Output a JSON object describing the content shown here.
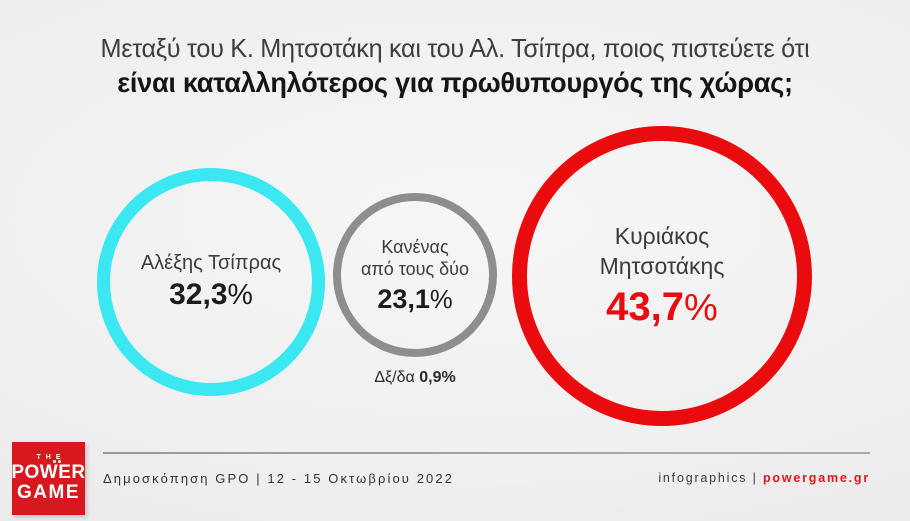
{
  "title": {
    "line1": "Μεταξύ του Κ. Μητσοτάκη και του Αλ. Τσίπρα, ποιος πιστεύετε ότι",
    "line2": "είναι καταλληλότερος για πρωθυπουργός της χώρας;"
  },
  "chart_data": {
    "type": "pie",
    "variant": "proportional-circles",
    "title": "Μεταξύ του Κ. Μητσοτάκη και του Αλ. Τσίπρα, ποιος πιστεύετε ότι είναι καταλληλότερος για πρωθυπουργός της χώρας;",
    "categories": [
      "Αλέξης Τσίπρας",
      "Κανένας από τους δύο",
      "Κυριάκος Μητσοτάκης",
      "Δξ/δα"
    ],
    "values": [
      32.3,
      23.1,
      43.7,
      0.9
    ],
    "value_labels": [
      "32,3%",
      "23,1%",
      "43,7%",
      "0,9%"
    ],
    "colors": [
      "#3BE8F2",
      "#8E8E8E",
      "#EA0B0E",
      null
    ],
    "legend_position": "none",
    "source": "Δημοσκόπηση GPO | 12 - 15 Οκτωβρίου 2022"
  },
  "bubbles": {
    "tsipras": {
      "name": "Αλέξης Τσίπρας",
      "value": "32,3",
      "percent": "%",
      "color": "#3BE8F2"
    },
    "none": {
      "name_line1": "Κανένας",
      "name_line2": "από τους δύο",
      "value": "23,1",
      "percent": "%",
      "color": "#8E8E8E"
    },
    "mitsotakis": {
      "name_line1": "Κυριάκος",
      "name_line2": "Μητσοτάκης",
      "value": "43,7",
      "percent": "%",
      "color": "#EA0B0E"
    }
  },
  "note": {
    "label": "Δξ/δα ",
    "value": "0,9%"
  },
  "footer": {
    "logo": {
      "the": "THE",
      "power": "POWER",
      "game": "GAME",
      "color": "#D7191F"
    },
    "source": "Δημοσκόπηση GPO | 12 - 15 Οκτωβρίου 2022",
    "infographics_label": "infographics | ",
    "site": "powergame.gr",
    "site_color": "#E8131B"
  }
}
